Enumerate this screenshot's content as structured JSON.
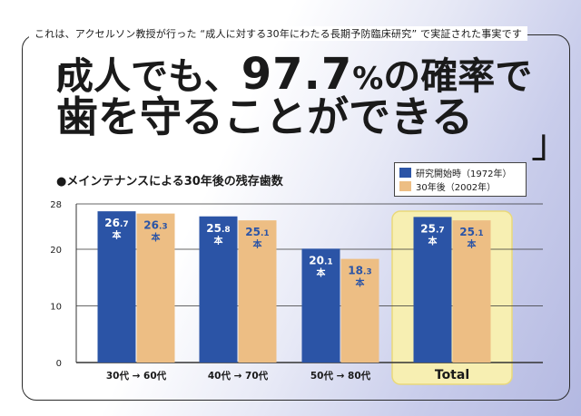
{
  "top_note": "これは、アクセルソン教授が行った “成人に対する30年にわたる長期予防臨床研究” で実証された事実です",
  "headline": {
    "bracket_open": "「",
    "line1_a": "成人でも、",
    "line1_num": "97.7",
    "line1_pct": "%",
    "line1_b": "の確率で",
    "line2": "歯を守ることができる",
    "bracket_close": "」"
  },
  "colors": {
    "blue": "#2b54a6",
    "tan": "#edbe84",
    "highlight": "#f7efb2",
    "highlight_border": "#ead97a"
  },
  "chart_data": {
    "type": "bar",
    "title": "●メインテナンスによる30年後の残存歯数",
    "categories": [
      "30代 → 60代",
      "40代 → 70代",
      "50代 → 80代",
      "Total"
    ],
    "series": [
      {
        "name": "研究開始時（1972年）",
        "values": [
          26.7,
          25.8,
          20.1,
          25.7
        ],
        "labels": [
          "26.7",
          "25.8",
          "20.1",
          "25.7"
        ]
      },
      {
        "name": "30年後（2002年）",
        "values": [
          26.3,
          25.1,
          18.3,
          25.1
        ],
        "labels": [
          "26.3",
          "25.1",
          "18.3",
          "25.1"
        ]
      }
    ],
    "unit_label": "本",
    "yticks": [
      0,
      10,
      20,
      28
    ],
    "ylim": [
      0,
      28
    ],
    "highlighted_category": "Total",
    "grid": true,
    "legend_position": "top-right"
  }
}
